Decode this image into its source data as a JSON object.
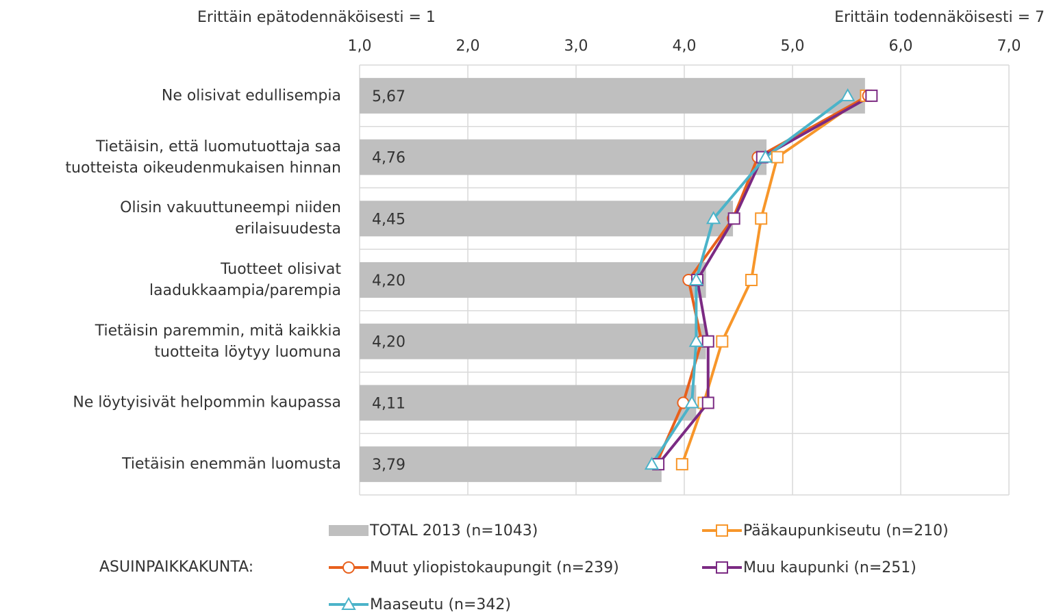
{
  "chart_data": {
    "type": "bar",
    "orientation": "horizontal",
    "annotations": [
      "Erittäin epätodennäköisesti = 1",
      "Erittäin todennäköisesti = 7"
    ],
    "legend_group_label": "ASUINPAIKKAKUNTA:",
    "categories": [
      "Ne olisivat edullisempia",
      "Tietäisin, että luomutuottaja saa\ntuotteista oikeudenmukaisen hinnan",
      "Olisin vakuuttuneempi niiden\nerilaisuudesta",
      "Tuotteet olisivat\nlaadukkaampia/parempia",
      "Tietäisin paremmin, mitä kaikkia\ntuotteita löytyy luomuna",
      "Ne löytyisivät helpommin kaupassa",
      "Tietäisin enemmän luomusta"
    ],
    "bar": {
      "name": "TOTAL 2013 (n=1043)",
      "color": "#bfbfbf",
      "values": [
        5.67,
        4.76,
        4.45,
        4.2,
        4.2,
        4.11,
        3.79
      ],
      "value_labels": [
        "5,67",
        "4,76",
        "4,45",
        "4,20",
        "4,20",
        "4,11",
        "3,79"
      ]
    },
    "series": [
      {
        "name": "Pääkaupunkiseutu (n=210)",
        "color": "#f7962a",
        "marker": "square",
        "values": [
          5.68,
          4.86,
          4.71,
          4.62,
          4.35,
          4.18,
          3.98
        ]
      },
      {
        "name": "Muut yliopistokaupungit (n=239)",
        "color": "#e8601c",
        "marker": "circle",
        "values": [
          5.7,
          4.68,
          4.45,
          4.04,
          4.16,
          3.99,
          3.74
        ]
      },
      {
        "name": "Muu kaupunki (n=251)",
        "color": "#7b2a83",
        "marker": "square",
        "values": [
          5.73,
          4.72,
          4.46,
          4.12,
          4.22,
          4.22,
          3.76
        ]
      },
      {
        "name": "Maaseutu (n=342)",
        "color": "#4bb3c9",
        "marker": "triangle",
        "values": [
          5.51,
          4.75,
          4.27,
          4.11,
          4.11,
          4.07,
          3.7
        ]
      }
    ],
    "xlim": [
      1,
      7
    ],
    "xticks": [
      {
        "value": 1,
        "label": "1,0"
      },
      {
        "value": 2,
        "label": "2,0"
      },
      {
        "value": 3,
        "label": "3,0"
      },
      {
        "value": 4,
        "label": "4,0"
      },
      {
        "value": 5,
        "label": "5,0"
      },
      {
        "value": 6,
        "label": "6,0"
      },
      {
        "value": 7,
        "label": "7,0"
      }
    ],
    "grid": true
  }
}
